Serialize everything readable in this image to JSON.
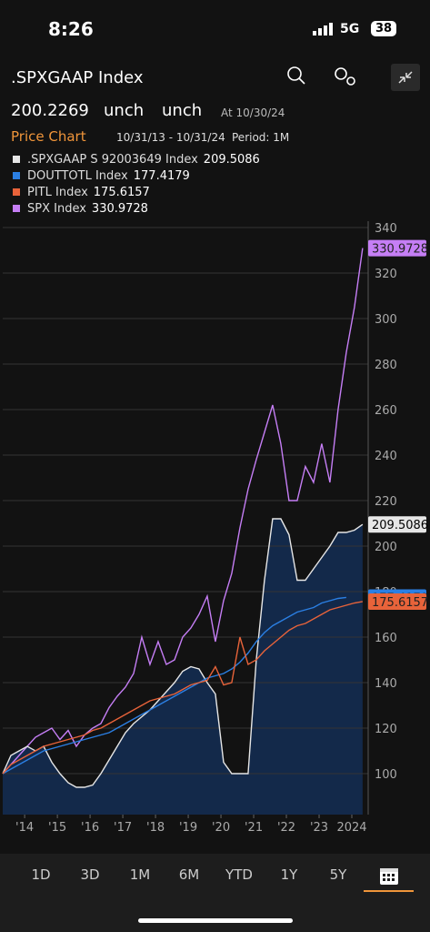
{
  "status_bar": {
    "time": "8:26",
    "network": "5G",
    "battery": "38"
  },
  "header": {
    "title": ".SPXGAAP Index",
    "price": "200.2269",
    "change": "unch",
    "change_pct": "unch",
    "as_of": "At 10/30/24",
    "chart_label": "Price Chart",
    "date_range": "10/31/13 - 10/31/24",
    "period": "Period: 1M"
  },
  "chart_data": {
    "type": "line",
    "x": [
      2013.83,
      2014.08,
      2014.33,
      2014.58,
      2014.83,
      2015.08,
      2015.33,
      2015.58,
      2015.83,
      2016.08,
      2016.33,
      2016.58,
      2016.83,
      2017.08,
      2017.33,
      2017.58,
      2017.83,
      2018.08,
      2018.33,
      2018.58,
      2018.83,
      2019.08,
      2019.33,
      2019.58,
      2019.83,
      2020.08,
      2020.33,
      2020.58,
      2020.83,
      2021.08,
      2021.33,
      2021.58,
      2021.83,
      2022.08,
      2022.33,
      2022.58,
      2022.83,
      2023.08,
      2023.33,
      2023.58,
      2023.83,
      2024.08,
      2024.33,
      2024.58,
      2024.83
    ],
    "xlim": [
      2013.83,
      2025.0
    ],
    "xticks": [
      {
        "value": 2014.5,
        "label": "'14"
      },
      {
        "value": 2015.5,
        "label": "'15"
      },
      {
        "value": 2016.5,
        "label": "'16"
      },
      {
        "value": 2017.5,
        "label": "'17"
      },
      {
        "value": 2018.5,
        "label": "'18"
      },
      {
        "value": 2019.5,
        "label": "'19"
      },
      {
        "value": 2020.5,
        "label": "'20"
      },
      {
        "value": 2021.5,
        "label": "'21"
      },
      {
        "value": 2022.5,
        "label": "'22"
      },
      {
        "value": 2023.5,
        "label": "'23"
      },
      {
        "value": 2024.5,
        "label": "2024"
      }
    ],
    "ylim": [
      82,
      340
    ],
    "yticks": [
      100,
      120,
      140,
      160,
      180,
      200,
      220,
      240,
      260,
      280,
      300,
      320,
      340
    ],
    "grid": true,
    "series": [
      {
        "name": ".SPXGAAP S 92003649 Index",
        "color": "#e6e6e6",
        "fill": "#13294a",
        "values": [
          100,
          108,
          110,
          112,
          110,
          112,
          105,
          100,
          96,
          94,
          94,
          95,
          100,
          106,
          112,
          118,
          122,
          125,
          128,
          132,
          136,
          140,
          145,
          147,
          146,
          140,
          135,
          105,
          100,
          100,
          100,
          150,
          185,
          212,
          212,
          205,
          185,
          185,
          190,
          195,
          200,
          206,
          206,
          207,
          209.5086
        ]
      },
      {
        "name": "DOUTTOTL Index",
        "color": "#2b7fe3",
        "values": [
          100,
          102,
          104,
          106,
          108,
          110,
          111,
          112,
          113,
          114,
          115,
          116,
          117,
          118,
          120,
          122,
          124,
          126,
          128,
          130,
          132,
          134,
          136,
          138,
          140,
          142,
          143,
          144,
          146,
          149,
          153,
          158,
          162,
          165,
          167,
          169,
          171,
          172,
          173,
          175,
          176,
          177,
          177.4179,
          null,
          null
        ]
      },
      {
        "name": "PITL Index",
        "color": "#e8633a",
        "values": [
          100,
          104,
          106,
          108,
          110,
          112,
          113,
          114,
          115,
          116,
          117,
          119,
          120,
          122,
          124,
          126,
          128,
          130,
          132,
          133,
          134,
          135,
          137,
          139,
          140,
          141,
          147,
          139,
          140,
          160,
          148,
          150,
          154,
          157,
          160,
          163,
          165,
          166,
          168,
          170,
          172,
          173,
          174,
          175,
          175.6157
        ]
      },
      {
        "name": "SPX Index",
        "color": "#c57ef5",
        "values": [
          100,
          104,
          108,
          112,
          116,
          118,
          120,
          115,
          119,
          112,
          117,
          120,
          122,
          129,
          134,
          138,
          144,
          160,
          148,
          158,
          148,
          150,
          160,
          164,
          170,
          178,
          158,
          176,
          188,
          208,
          225,
          238,
          250,
          262,
          245,
          220,
          220,
          235,
          228,
          245,
          228,
          260,
          285,
          305,
          330.9728
        ]
      }
    ]
  },
  "tabs": [
    "1D",
    "3D",
    "1M",
    "6M",
    "YTD",
    "1Y",
    "5Y"
  ]
}
